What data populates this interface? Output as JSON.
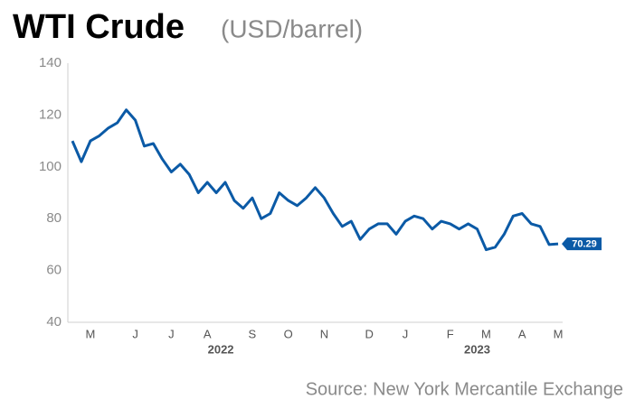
{
  "chart_data": {
    "type": "line",
    "title": "WTI Crude",
    "subtitle": "(USD/barrel)",
    "source": "Source: New York Mercantile Exchange",
    "categories": [
      null,
      null,
      "M",
      null,
      null,
      null,
      null,
      "J",
      null,
      null,
      null,
      "J",
      null,
      null,
      null,
      "A",
      null,
      null,
      null,
      null,
      "S",
      null,
      null,
      null,
      "O",
      null,
      null,
      null,
      "N",
      null,
      null,
      null,
      null,
      "D",
      null,
      null,
      null,
      "J",
      null,
      null,
      null,
      null,
      "F",
      null,
      null,
      null,
      "M",
      null,
      null,
      null,
      "A",
      null,
      null,
      null,
      "M"
    ],
    "x_groups": [
      "2022",
      "2023"
    ],
    "values": [
      110,
      102,
      110,
      112,
      115,
      117,
      122,
      118,
      108,
      109,
      103,
      98,
      101,
      97,
      90,
      94,
      90,
      94,
      87,
      84,
      88,
      80,
      82,
      90,
      87,
      85,
      88,
      92,
      88,
      82,
      77,
      79,
      72,
      76,
      78,
      78,
      74,
      79,
      81,
      80,
      76,
      79,
      78,
      76,
      78,
      76,
      68,
      69,
      74,
      81,
      82,
      78,
      77,
      70,
      70.29
    ],
    "color": "#0b5aa6",
    "ylim": [
      40,
      140
    ],
    "yticks": [
      40,
      60,
      80,
      100,
      120,
      140
    ],
    "grid": false
  }
}
